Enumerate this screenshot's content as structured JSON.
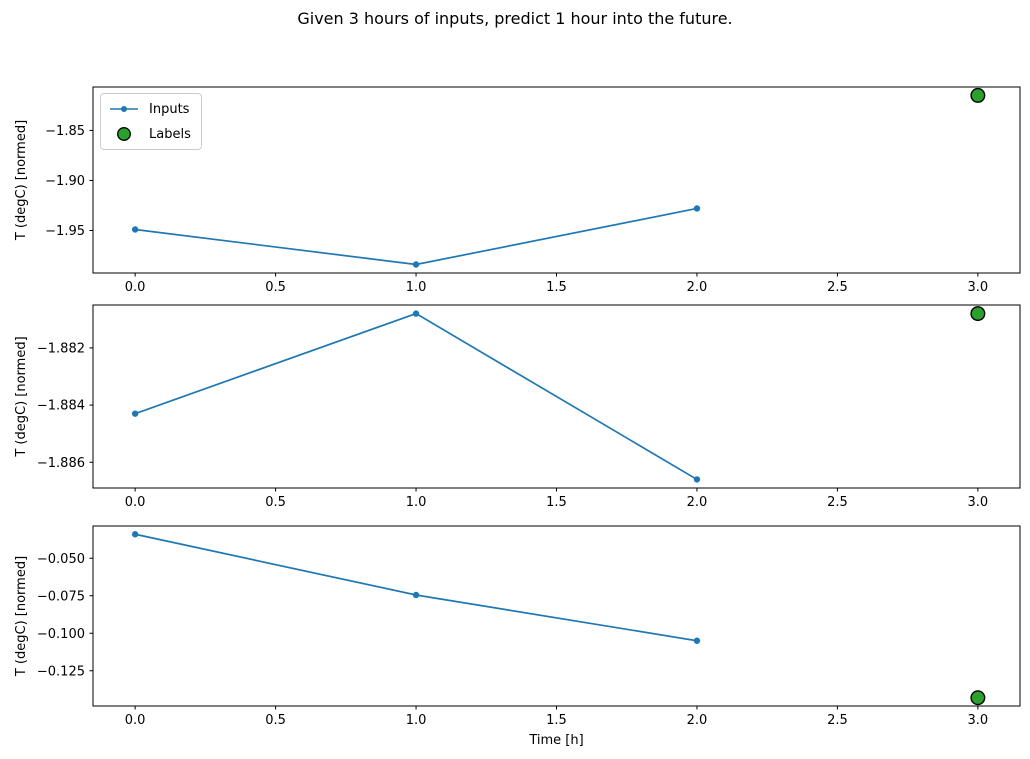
{
  "figure": {
    "title": "Given 3 hours of inputs, predict 1 hour into the future.",
    "background": "#ffffff"
  },
  "legend": {
    "position": "upper-left-of-first-subplot",
    "items": [
      {
        "label": "Inputs",
        "marker": "line-with-dot",
        "color": "#1f77b4"
      },
      {
        "label": "Labels",
        "marker": "filled-circle",
        "fill": "#2ca02c",
        "edge": "#000000"
      }
    ]
  },
  "colors": {
    "inputs_line": "#1f77b4",
    "labels_fill": "#2ca02c",
    "labels_edge": "#000000",
    "axis": "#000000",
    "legend_border": "#cccccc"
  },
  "xlabel": "Time [h]",
  "chart_data": [
    {
      "type": "line",
      "ylabel": "T (degC) [normed]",
      "x": [
        0,
        1,
        2
      ],
      "series": [
        {
          "name": "Inputs",
          "values": [
            -1.949,
            -1.984,
            -1.928
          ]
        }
      ],
      "labels_point": {
        "name": "Labels",
        "x": 3,
        "y": -1.815
      },
      "xlim": [
        -0.15,
        3.15
      ],
      "ylim": [
        -1.9925,
        -1.8066
      ],
      "xticks": [
        0,
        0.5,
        1,
        1.5,
        2,
        2.5,
        3
      ],
      "xtick_labels": [
        "0.0",
        "0.5",
        "1.0",
        "1.5",
        "2.0",
        "2.5",
        "3.0"
      ],
      "yticks": [
        -1.85,
        -1.9,
        -1.95
      ],
      "ytick_labels": [
        "−1.85",
        "−1.90",
        "−1.95"
      ],
      "grid": false,
      "has_legend": true,
      "xlabel": ""
    },
    {
      "type": "line",
      "ylabel": "T (degC) [normed]",
      "x": [
        0,
        1,
        2
      ],
      "series": [
        {
          "name": "Inputs",
          "values": [
            -1.8843,
            -1.8808,
            -1.8866
          ]
        }
      ],
      "labels_point": {
        "name": "Labels",
        "x": 3,
        "y": -1.8808
      },
      "xlim": [
        -0.15,
        3.15
      ],
      "ylim": [
        -1.8869,
        -1.8805
      ],
      "xticks": [
        0,
        0.5,
        1,
        1.5,
        2,
        2.5,
        3
      ],
      "xtick_labels": [
        "0.0",
        "0.5",
        "1.0",
        "1.5",
        "2.0",
        "2.5",
        "3.0"
      ],
      "yticks": [
        -1.882,
        -1.884,
        -1.886
      ],
      "ytick_labels": [
        "−1.882",
        "−1.884",
        "−1.886"
      ],
      "grid": false,
      "has_legend": false,
      "xlabel": ""
    },
    {
      "type": "line",
      "ylabel": "T (degC) [normed]",
      "x": [
        0,
        1,
        2
      ],
      "series": [
        {
          "name": "Inputs",
          "values": [
            -0.034,
            -0.0745,
            -0.105
          ]
        }
      ],
      "labels_point": {
        "name": "Labels",
        "x": 3,
        "y": -0.143
      },
      "xlim": [
        -0.15,
        3.15
      ],
      "ylim": [
        -0.1485,
        -0.0285
      ],
      "xticks": [
        0,
        0.5,
        1,
        1.5,
        2,
        2.5,
        3
      ],
      "xtick_labels": [
        "0.0",
        "0.5",
        "1.0",
        "1.5",
        "2.0",
        "2.5",
        "3.0"
      ],
      "yticks": [
        -0.05,
        -0.075,
        -0.1,
        -0.125
      ],
      "ytick_labels": [
        "−0.050",
        "−0.075",
        "−0.100",
        "−0.125"
      ],
      "grid": false,
      "has_legend": false,
      "xlabel": "Time [h]"
    }
  ]
}
